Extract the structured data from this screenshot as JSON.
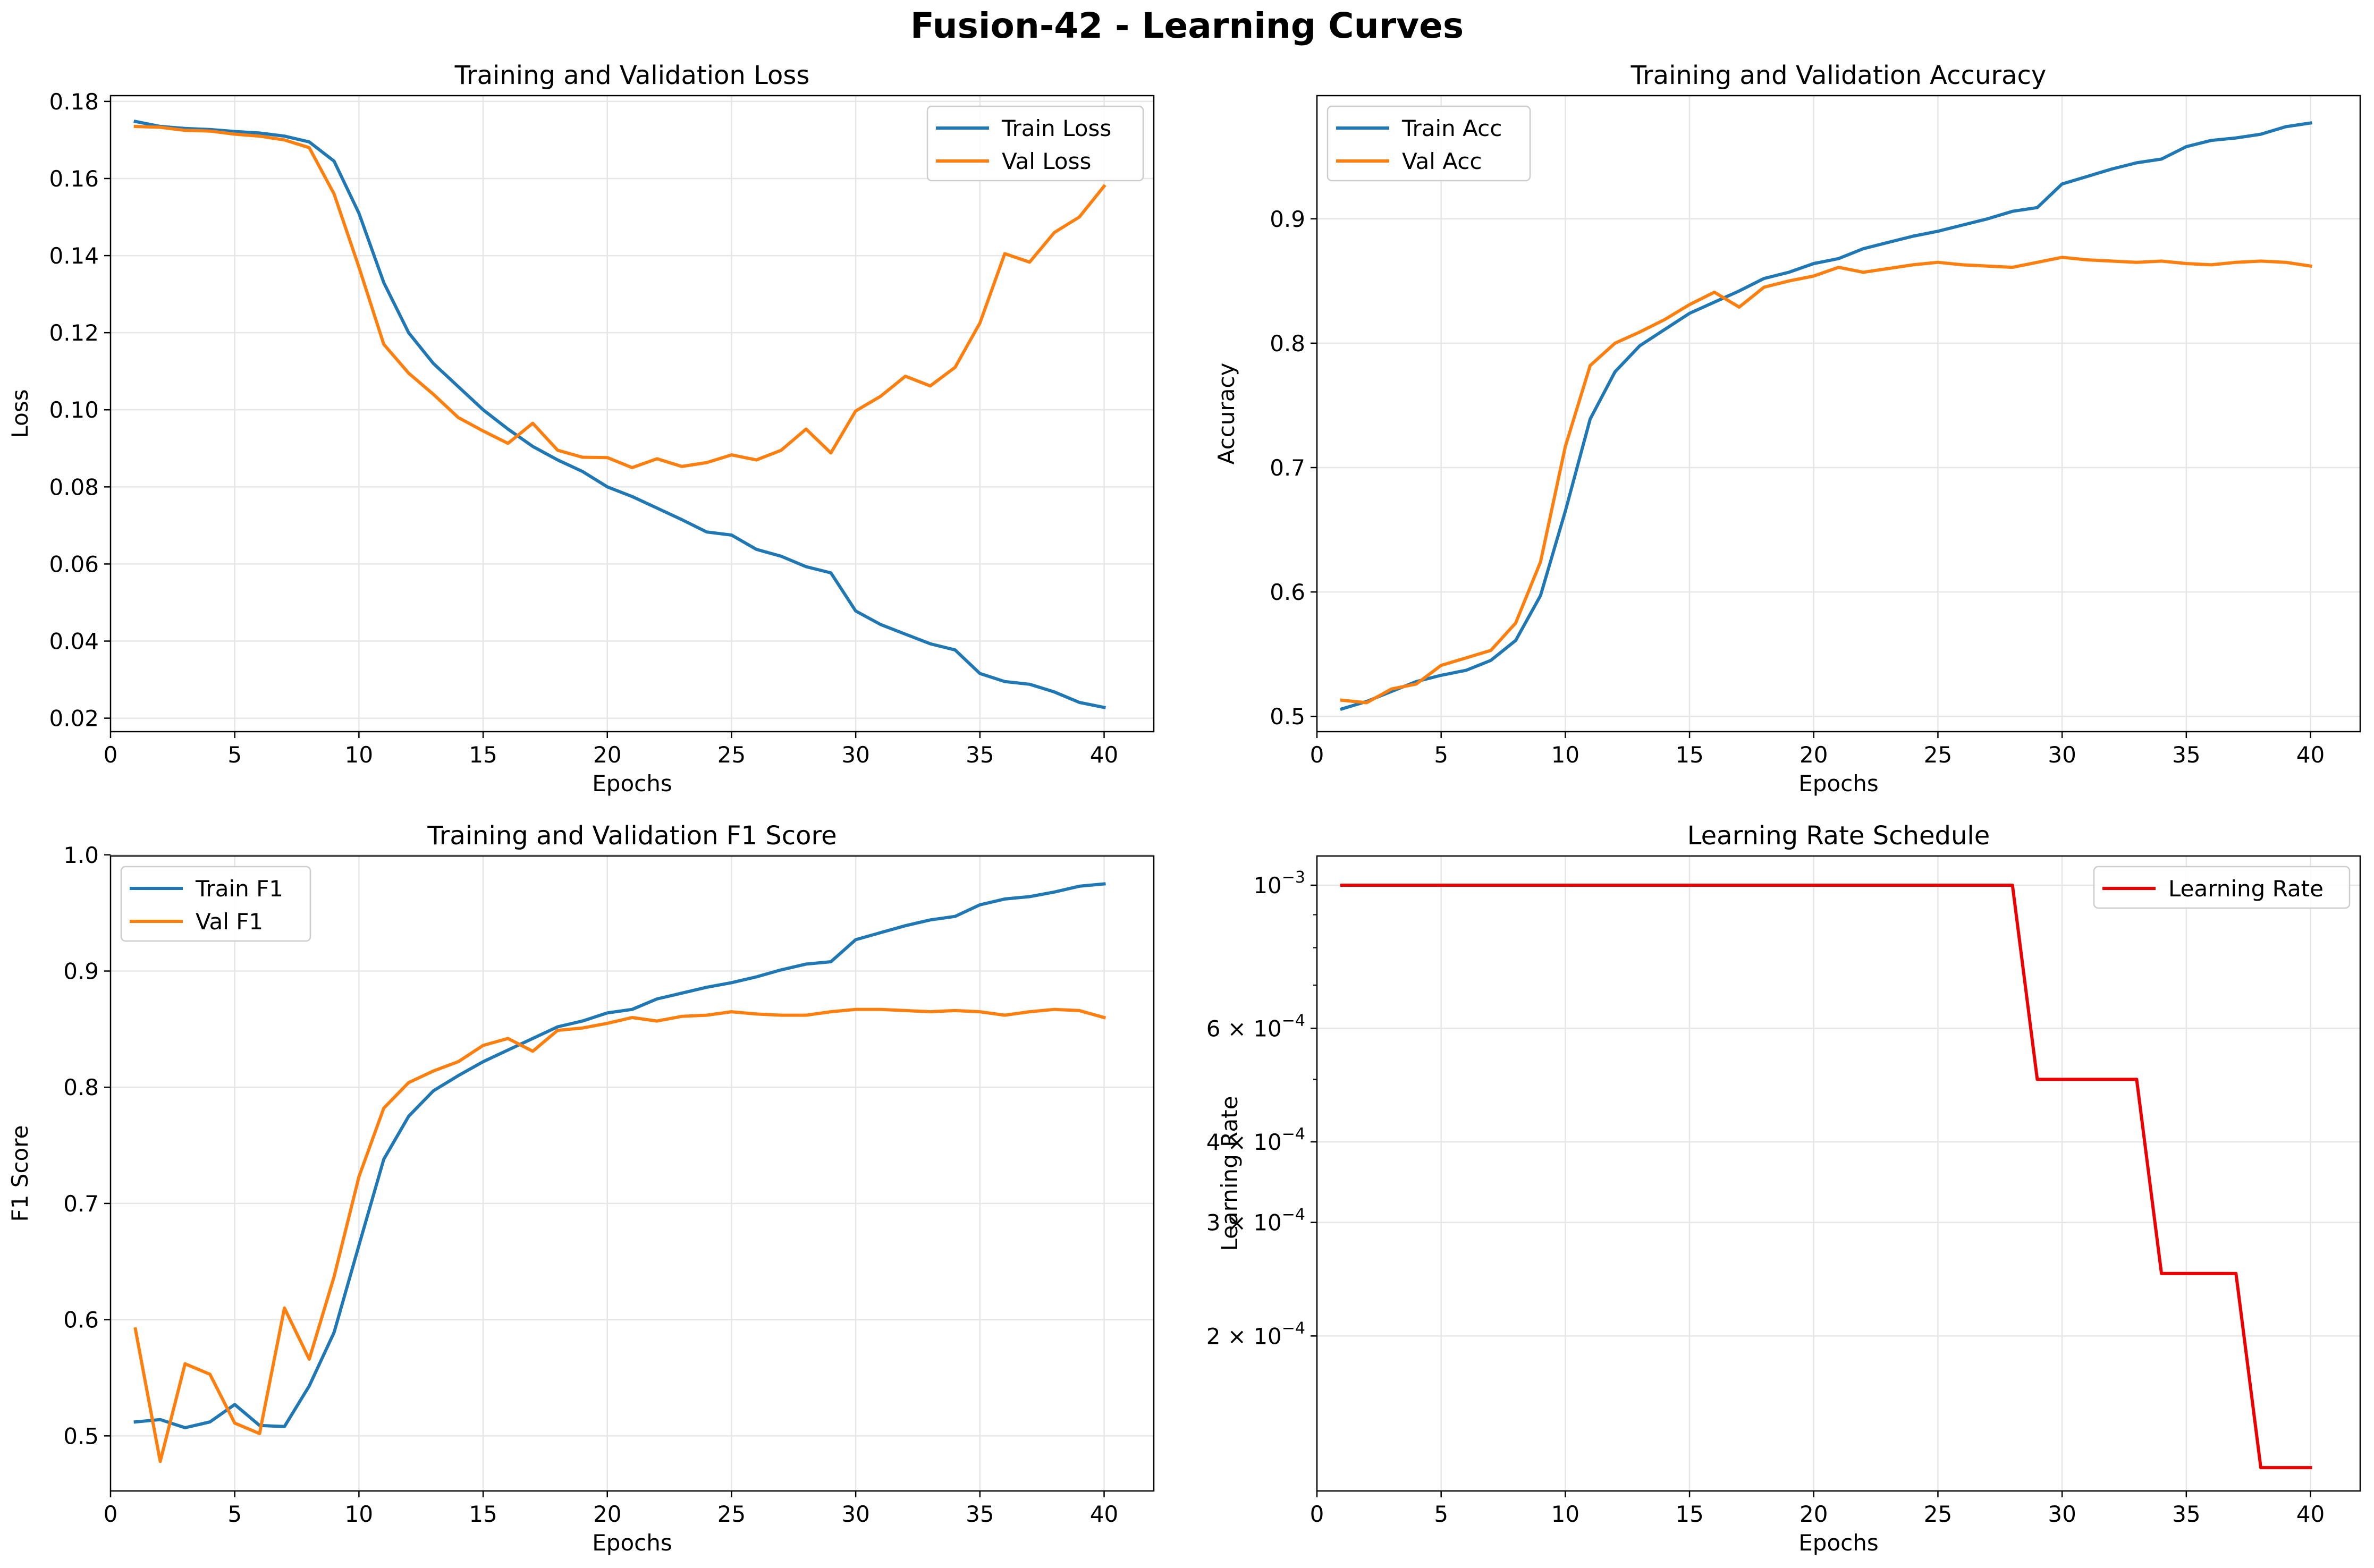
{
  "figure": {
    "title": "Fusion-42 - Learning Curves"
  },
  "colors": {
    "train": "#1f77b4",
    "val": "#ff7f0e",
    "lr": "#ee0000",
    "grid": "#e6e6e6",
    "axes": "#000000"
  },
  "chart_data": [
    {
      "id": "loss",
      "type": "line",
      "title": "Training and Validation Loss",
      "xlabel": "Epochs",
      "ylabel": "Loss",
      "x": [
        1,
        2,
        3,
        4,
        5,
        6,
        7,
        8,
        9,
        10,
        11,
        12,
        13,
        14,
        15,
        16,
        17,
        18,
        19,
        20,
        21,
        22,
        23,
        24,
        25,
        26,
        27,
        28,
        29,
        30,
        31,
        32,
        33,
        34,
        35,
        36,
        37,
        38,
        39,
        40
      ],
      "xlim": [
        0,
        42
      ],
      "ylim": [
        0.0165,
        0.1815
      ],
      "xticks": [
        0,
        5,
        10,
        15,
        20,
        25,
        30,
        35,
        40
      ],
      "yticks": [
        0.02,
        0.04,
        0.06,
        0.08,
        0.1,
        0.12,
        0.14,
        0.16,
        0.18
      ],
      "ytick_labels": [
        "0.02",
        "0.04",
        "0.06",
        "0.08",
        "0.10",
        "0.12",
        "0.14",
        "0.16",
        "0.18"
      ],
      "grid": true,
      "legend": "upper right",
      "series": [
        {
          "name": "Train Loss",
          "color": "#1f77b4",
          "values": [
            0.1748,
            0.1735,
            0.173,
            0.1727,
            0.1722,
            0.1718,
            0.171,
            0.1695,
            0.1645,
            0.151,
            0.133,
            0.12,
            0.112,
            0.106,
            0.1,
            0.095,
            0.0905,
            0.087,
            0.084,
            0.08,
            0.0775,
            0.0745,
            0.0715,
            0.0683,
            0.0675,
            0.0638,
            0.062,
            0.0593,
            0.0577,
            0.0478,
            0.0443,
            0.0418,
            0.0393,
            0.0377,
            0.0316,
            0.0295,
            0.0288,
            0.0268,
            0.0241,
            0.0228
          ]
        },
        {
          "name": "Val Loss",
          "color": "#ff7f0e",
          "values": [
            0.1735,
            0.1733,
            0.1725,
            0.1723,
            0.1715,
            0.171,
            0.17,
            0.168,
            0.156,
            0.137,
            0.117,
            0.1095,
            0.104,
            0.098,
            0.0945,
            0.0913,
            0.0965,
            0.0895,
            0.0877,
            0.0876,
            0.085,
            0.0873,
            0.0853,
            0.0863,
            0.0883,
            0.087,
            0.0895,
            0.095,
            0.0888,
            0.0997,
            0.1035,
            0.1087,
            0.1062,
            0.111,
            0.1225,
            0.1405,
            0.1383,
            0.146,
            0.15,
            0.158
          ]
        }
      ]
    },
    {
      "id": "acc",
      "type": "line",
      "title": "Training and Validation Accuracy",
      "xlabel": "Epochs",
      "ylabel": "Accuracy",
      "x": [
        1,
        2,
        3,
        4,
        5,
        6,
        7,
        8,
        9,
        10,
        11,
        12,
        13,
        14,
        15,
        16,
        17,
        18,
        19,
        20,
        21,
        22,
        23,
        24,
        25,
        26,
        27,
        28,
        29,
        30,
        31,
        32,
        33,
        34,
        35,
        36,
        37,
        38,
        39,
        40
      ],
      "xlim": [
        0,
        42
      ],
      "ylim": [
        0.4877,
        0.999
      ],
      "xticks": [
        0,
        5,
        10,
        15,
        20,
        25,
        30,
        35,
        40
      ],
      "yticks": [
        0.5,
        0.6,
        0.7,
        0.8,
        0.9
      ],
      "ytick_labels": [
        "0.5",
        "0.6",
        "0.7",
        "0.8",
        "0.9"
      ],
      "grid": true,
      "legend": "upper left",
      "series": [
        {
          "name": "Train Acc",
          "color": "#1f77b4",
          "values": [
            0.506,
            0.512,
            0.52,
            0.528,
            0.533,
            0.537,
            0.545,
            0.561,
            0.597,
            0.665,
            0.739,
            0.777,
            0.798,
            0.811,
            0.824,
            0.833,
            0.842,
            0.852,
            0.857,
            0.864,
            0.868,
            0.876,
            0.881,
            0.886,
            0.89,
            0.895,
            0.9,
            0.906,
            0.909,
            0.928,
            0.934,
            0.94,
            0.945,
            0.948,
            0.958,
            0.963,
            0.965,
            0.968,
            0.974,
            0.977
          ]
        },
        {
          "name": "Val Acc",
          "color": "#ff7f0e",
          "values": [
            0.513,
            0.511,
            0.522,
            0.526,
            0.541,
            0.547,
            0.553,
            0.575,
            0.624,
            0.717,
            0.782,
            0.8,
            0.809,
            0.819,
            0.831,
            0.841,
            0.829,
            0.845,
            0.85,
            0.854,
            0.861,
            0.857,
            0.86,
            0.863,
            0.865,
            0.863,
            0.862,
            0.861,
            0.865,
            0.869,
            0.867,
            0.866,
            0.865,
            0.866,
            0.864,
            0.863,
            0.865,
            0.866,
            0.865,
            0.862
          ]
        }
      ]
    },
    {
      "id": "f1",
      "type": "line",
      "title": "Training and Validation F1 Score",
      "xlabel": "Epochs",
      "ylabel": "F1 Score",
      "x": [
        1,
        2,
        3,
        4,
        5,
        6,
        7,
        8,
        9,
        10,
        11,
        12,
        13,
        14,
        15,
        16,
        17,
        18,
        19,
        20,
        21,
        22,
        23,
        24,
        25,
        26,
        27,
        28,
        29,
        30,
        31,
        32,
        33,
        34,
        35,
        36,
        37,
        38,
        39,
        40
      ],
      "xlim": [
        0,
        42
      ],
      "ylim": [
        0.4526,
        0.999
      ],
      "xticks": [
        0,
        5,
        10,
        15,
        20,
        25,
        30,
        35,
        40
      ],
      "yticks": [
        0.5,
        0.6,
        0.7,
        0.8,
        0.9,
        1.0
      ],
      "ytick_labels": [
        "0.5",
        "0.6",
        "0.7",
        "0.8",
        "0.9",
        "1.0"
      ],
      "grid": true,
      "legend": "upper left",
      "series": [
        {
          "name": "Train F1",
          "color": "#1f77b4",
          "values": [
            0.512,
            0.514,
            0.507,
            0.512,
            0.527,
            0.509,
            0.508,
            0.543,
            0.589,
            0.664,
            0.738,
            0.775,
            0.797,
            0.81,
            0.822,
            0.832,
            0.842,
            0.852,
            0.857,
            0.864,
            0.867,
            0.876,
            0.881,
            0.886,
            0.89,
            0.895,
            0.901,
            0.906,
            0.908,
            0.927,
            0.933,
            0.939,
            0.944,
            0.947,
            0.957,
            0.962,
            0.964,
            0.968,
            0.973,
            0.975
          ]
        },
        {
          "name": "Val F1",
          "color": "#ff7f0e",
          "values": [
            0.592,
            0.478,
            0.562,
            0.553,
            0.511,
            0.502,
            0.61,
            0.566,
            0.637,
            0.723,
            0.782,
            0.804,
            0.814,
            0.822,
            0.836,
            0.842,
            0.831,
            0.849,
            0.851,
            0.855,
            0.86,
            0.857,
            0.861,
            0.862,
            0.865,
            0.863,
            0.862,
            0.862,
            0.865,
            0.867,
            0.867,
            0.866,
            0.865,
            0.866,
            0.865,
            0.862,
            0.865,
            0.867,
            0.866,
            0.86
          ]
        }
      ]
    },
    {
      "id": "lr",
      "type": "line",
      "title": "Learning Rate Schedule",
      "xlabel": "Epochs",
      "ylabel": "Learning Rate",
      "yscale": "log",
      "x": [
        1,
        2,
        3,
        4,
        5,
        6,
        7,
        8,
        9,
        10,
        11,
        12,
        13,
        14,
        15,
        16,
        17,
        18,
        19,
        20,
        21,
        22,
        23,
        24,
        25,
        26,
        27,
        28,
        29,
        30,
        31,
        32,
        33,
        34,
        35,
        36,
        37,
        38,
        39,
        40
      ],
      "xlim": [
        0,
        42
      ],
      "ylim": [
        0.000115,
        0.00111
      ],
      "xticks": [
        0,
        5,
        10,
        15,
        20,
        25,
        30,
        35,
        40
      ],
      "yticks": [
        0.001,
        0.0006,
        0.0004,
        0.0003,
        0.0002
      ],
      "ytick_labels": [
        {
          "mant": "10",
          "exp": "−3"
        },
        {
          "mant": "6 × 10",
          "exp": "−4"
        },
        {
          "mant": "4 × 10",
          "exp": "−4"
        },
        {
          "mant": "3 × 10",
          "exp": "−4"
        },
        {
          "mant": "2 × 10",
          "exp": "−4"
        }
      ],
      "minor_yticks": [
        0.0009,
        0.0008,
        0.0007,
        0.0005
      ],
      "grid": true,
      "legend": "upper right",
      "series": [
        {
          "name": "Learning Rate",
          "color": "#ee0000",
          "values": [
            0.001,
            0.001,
            0.001,
            0.001,
            0.001,
            0.001,
            0.001,
            0.001,
            0.001,
            0.001,
            0.001,
            0.001,
            0.001,
            0.001,
            0.001,
            0.001,
            0.001,
            0.001,
            0.001,
            0.001,
            0.001,
            0.001,
            0.001,
            0.001,
            0.001,
            0.001,
            0.001,
            0.001,
            0.0005,
            0.0005,
            0.0005,
            0.0005,
            0.0005,
            0.00025,
            0.00025,
            0.00025,
            0.00025,
            0.000125,
            0.000125,
            0.000125
          ]
        }
      ]
    }
  ]
}
